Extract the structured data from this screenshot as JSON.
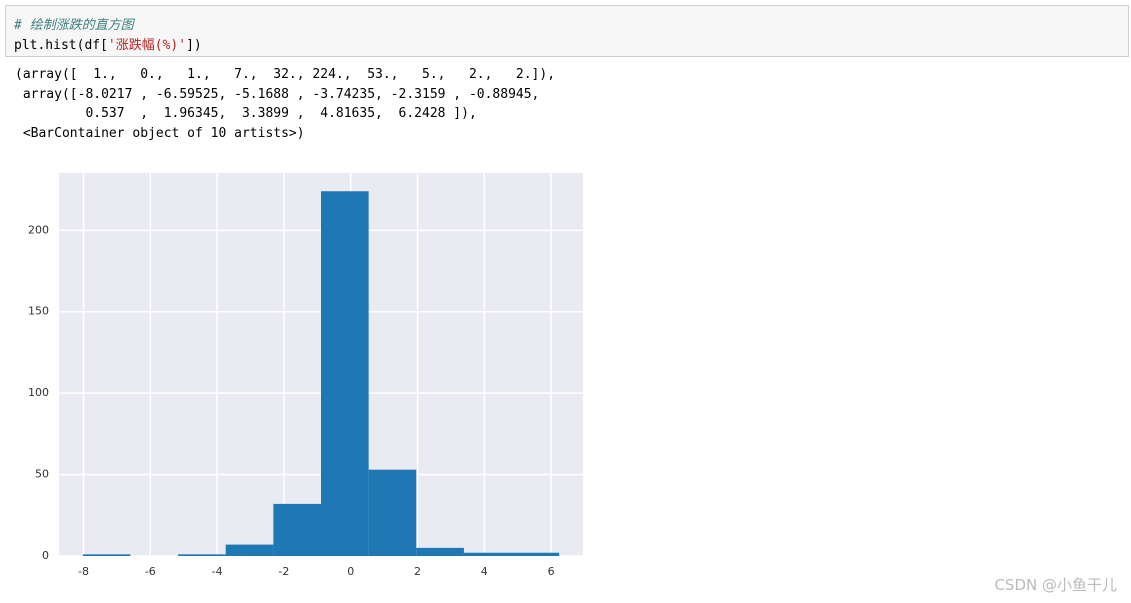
{
  "code": {
    "lines": [
      "# 绘制涨跌的直方图"
    ],
    "call": [
      "plt.hist(df[",
      "'涨跌幅(%)'",
      "])"
    ]
  },
  "output": {
    "lines": [
      "(array([  1.,   0.,   1.,   7.,  32., 224.,  53.,   5.,   2.,   2.]),",
      " array([-8.0217 , -6.59525, -5.1688 , -3.74235, -2.3159 , -0.88945,",
      "         0.537  ,  1.96345,  3.3899 ,  4.81635,  6.2428 ]),",
      " <BarContainer object of 10 artists>)"
    ]
  },
  "chart_data": {
    "type": "histogram",
    "bins": [
      -8.0217,
      -6.59525,
      -5.1688,
      -3.74235,
      -2.3159,
      -0.88945,
      0.537,
      1.96345,
      3.3899,
      4.81635,
      6.2428
    ],
    "counts": [
      1,
      0,
      1,
      7,
      32,
      224,
      53,
      5,
      2,
      2
    ],
    "color": "#1f77b4",
    "xlim": [
      -8.734,
      6.955
    ],
    "ylim": [
      0,
      235.2
    ],
    "xticks": [
      -8,
      -6,
      -4,
      -2,
      0,
      2,
      4,
      6
    ],
    "yticks": [
      0,
      50,
      100,
      150,
      200
    ],
    "grid": true
  },
  "watermark": "CSDN @小鱼干儿"
}
